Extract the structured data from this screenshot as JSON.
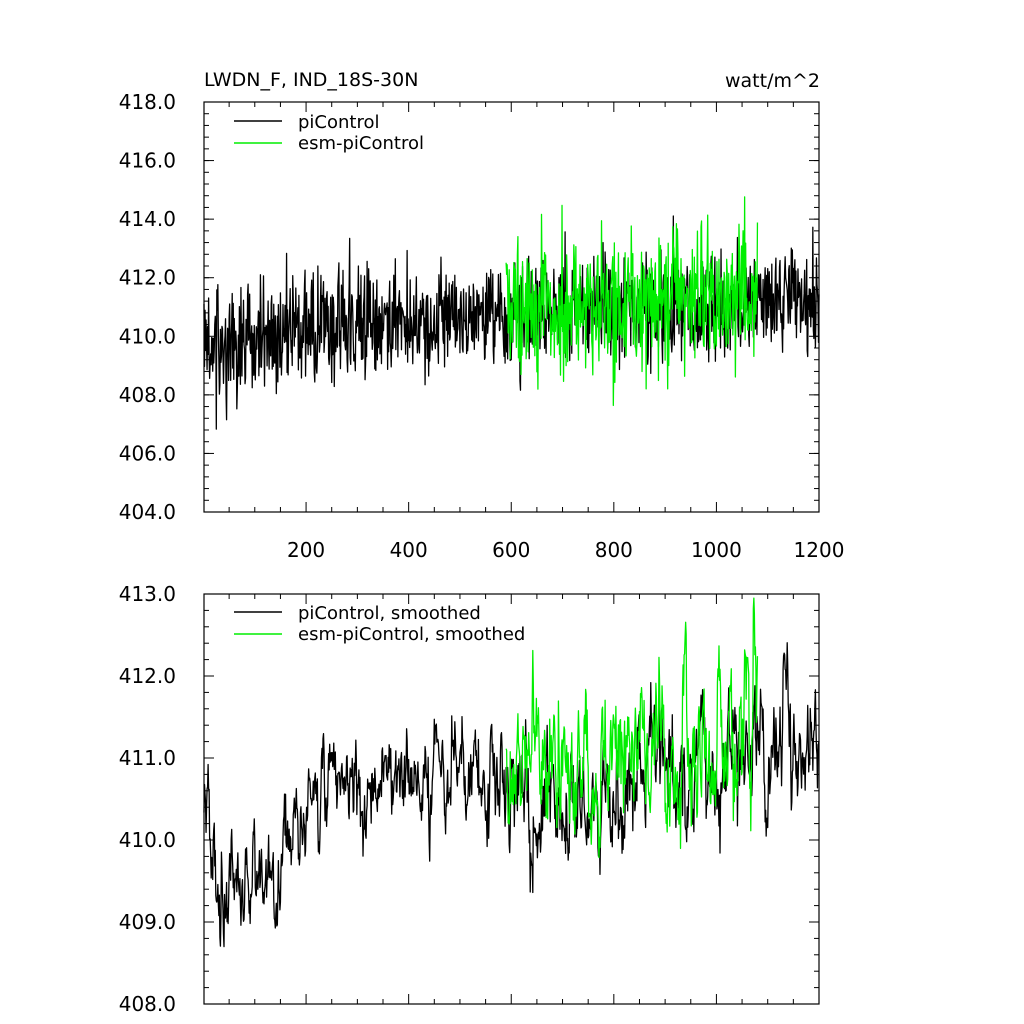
{
  "chart_data": [
    {
      "type": "line",
      "title": "LWDN_F, IND_18S-30N",
      "units": "watt/m^2",
      "xlim": [
        1,
        1200
      ],
      "ylim": [
        404.0,
        418.0
      ],
      "xticks": [
        200,
        400,
        600,
        800,
        1000,
        1200
      ],
      "yticks": [
        404.0,
        406.0,
        408.0,
        410.0,
        412.0,
        414.0,
        416.0,
        418.0
      ],
      "ytick_labels": [
        "404.0",
        "406.0",
        "408.0",
        "410.0",
        "412.0",
        "414.0",
        "416.0",
        "418.0"
      ],
      "xtick_labels": [
        "200",
        "400",
        "600",
        "800",
        "1000",
        "1200"
      ],
      "grid": false,
      "legend_position": "top-left",
      "series": [
        {
          "name": "piControl",
          "color": "#000000",
          "x_range": [
            1,
            1200
          ],
          "trend_knots": [
            [
              1,
              409.6
            ],
            [
              100,
              409.9
            ],
            [
              200,
              410.2
            ],
            [
              300,
              410.4
            ],
            [
              400,
              410.5
            ],
            [
              500,
              410.6
            ],
            [
              600,
              410.7
            ],
            [
              700,
              410.8
            ],
            [
              800,
              410.9
            ],
            [
              900,
              411.0
            ],
            [
              1000,
              411.0
            ],
            [
              1100,
              411.1
            ],
            [
              1200,
              411.2
            ]
          ],
          "spread_knots": [
            [
              1,
              1.4
            ],
            [
              300,
              1.3
            ],
            [
              600,
              1.2
            ],
            [
              1200,
              1.2
            ]
          ]
        },
        {
          "name": "esm-piControl",
          "color": "#00ee00",
          "x_range": [
            590,
            1080
          ],
          "trend_knots": [
            [
              590,
              410.9
            ],
            [
              700,
              411.0
            ],
            [
              800,
              411.1
            ],
            [
              900,
              411.3
            ],
            [
              1000,
              411.3
            ],
            [
              1080,
              411.4
            ]
          ],
          "spread_knots": [
            [
              590,
              1.5
            ],
            [
              1080,
              1.5
            ]
          ]
        }
      ]
    },
    {
      "type": "line",
      "xlim": [
        1,
        1200
      ],
      "ylim": [
        408.0,
        413.0
      ],
      "yticks": [
        408.0,
        409.0,
        410.0,
        411.0,
        412.0,
        413.0
      ],
      "ytick_labels": [
        "408.0",
        "409.0",
        "410.0",
        "411.0",
        "412.0",
        "413.0"
      ],
      "xticks": [
        200,
        400,
        600,
        800,
        1000,
        1200
      ],
      "grid": false,
      "legend_position": "top-left",
      "series": [
        {
          "name": "piControl, smoothed",
          "color": "#000000",
          "x_range": [
            1,
            1200
          ],
          "trend_knots": [
            [
              1,
              410.6
            ],
            [
              25,
              409.4
            ],
            [
              60,
              409.3
            ],
            [
              100,
              409.4
            ],
            [
              140,
              409.6
            ],
            [
              180,
              410.3
            ],
            [
              220,
              410.6
            ],
            [
              300,
              410.6
            ],
            [
              400,
              410.7
            ],
            [
              500,
              410.8
            ],
            [
              550,
              410.9
            ],
            [
              600,
              410.5
            ],
            [
              650,
              410.4
            ],
            [
              700,
              410.5
            ],
            [
              800,
              410.6
            ],
            [
              900,
              410.8
            ],
            [
              1000,
              410.9
            ],
            [
              1100,
              411.2
            ],
            [
              1200,
              411.2
            ]
          ],
          "spread_knots": [
            [
              1,
              0.35
            ],
            [
              200,
              0.35
            ],
            [
              600,
              0.4
            ],
            [
              1200,
              0.45
            ]
          ]
        },
        {
          "name": "esm-piControl, smoothed",
          "color": "#00ee00",
          "x_range": [
            590,
            1080
          ],
          "trend_knots": [
            [
              590,
              410.9
            ],
            [
              700,
              410.9
            ],
            [
              800,
              411.0
            ],
            [
              900,
              411.1
            ],
            [
              1000,
              411.3
            ],
            [
              1080,
              411.2
            ]
          ],
          "spread_knots": [
            [
              590,
              0.45
            ],
            [
              1080,
              0.55
            ]
          ]
        }
      ]
    }
  ]
}
